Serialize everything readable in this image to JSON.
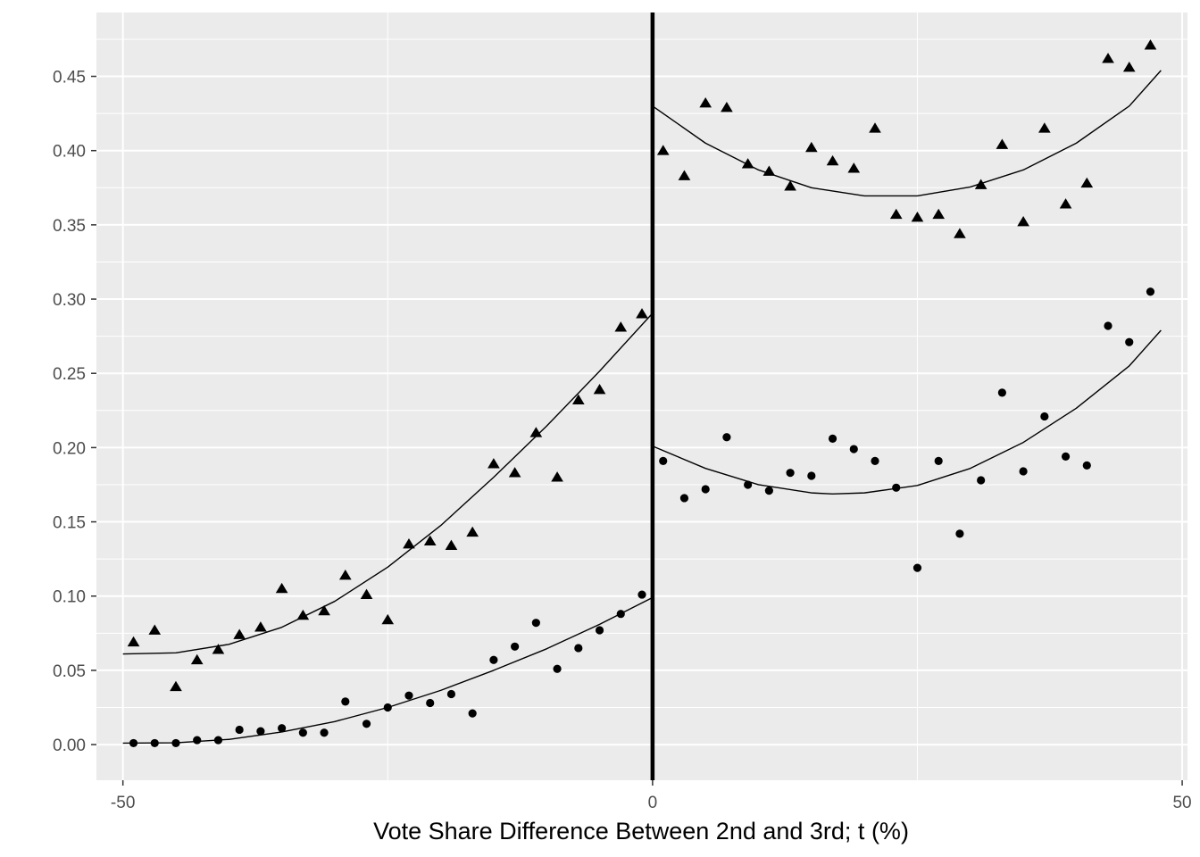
{
  "chart_data": {
    "type": "scatter",
    "title": "",
    "xlabel": "Vote Share Difference Between 2nd and 3rd; t (%)",
    "ylabel": "",
    "xlim": [
      -52.5,
      50.5
    ],
    "ylim": [
      -0.024,
      0.493
    ],
    "x_ticks": [
      -50,
      0,
      50
    ],
    "x_tick_labels": [
      "-50",
      "0",
      "50"
    ],
    "y_ticks": [
      0.0,
      0.05,
      0.1,
      0.15,
      0.2,
      0.25,
      0.3,
      0.35,
      0.4,
      0.45
    ],
    "y_tick_labels": [
      "0.00",
      "0.05",
      "0.10",
      "0.15",
      "0.20",
      "0.25",
      "0.30",
      "0.35",
      "0.40",
      "0.45"
    ],
    "grid": true,
    "panel_background": "#ebebeb",
    "grid_color": "#ffffff",
    "mark_color": "#000000",
    "cutoff_line": {
      "x": 0
    },
    "series": [
      {
        "marker": "triangle",
        "points": [
          [
            -49,
            0.069
          ],
          [
            -47,
            0.077
          ],
          [
            -45,
            0.039
          ],
          [
            -43,
            0.057
          ],
          [
            -41,
            0.064
          ],
          [
            -39,
            0.074
          ],
          [
            -37,
            0.079
          ],
          [
            -35,
            0.105
          ],
          [
            -33,
            0.087
          ],
          [
            -31,
            0.09
          ],
          [
            -29,
            0.114
          ],
          [
            -27,
            0.101
          ],
          [
            -25,
            0.084
          ],
          [
            -23,
            0.135
          ],
          [
            -21,
            0.137
          ],
          [
            -19,
            0.134
          ],
          [
            -17,
            0.143
          ],
          [
            -15,
            0.189
          ],
          [
            -13,
            0.183
          ],
          [
            -11,
            0.21
          ],
          [
            -9,
            0.18
          ],
          [
            -7,
            0.232
          ],
          [
            -5,
            0.239
          ],
          [
            -3,
            0.281
          ],
          [
            -1,
            0.29
          ],
          [
            1,
            0.4
          ],
          [
            3,
            0.383
          ],
          [
            5,
            0.432
          ],
          [
            7,
            0.429
          ],
          [
            9,
            0.391
          ],
          [
            11,
            0.386
          ],
          [
            13,
            0.376
          ],
          [
            15,
            0.402
          ],
          [
            17,
            0.393
          ],
          [
            19,
            0.388
          ],
          [
            21,
            0.415
          ],
          [
            23,
            0.357
          ],
          [
            25,
            0.355
          ],
          [
            27,
            0.357
          ],
          [
            29,
            0.344
          ],
          [
            31,
            0.377
          ],
          [
            33,
            0.404
          ],
          [
            35,
            0.352
          ],
          [
            37,
            0.415
          ],
          [
            39,
            0.364
          ],
          [
            41,
            0.378
          ],
          [
            43,
            0.462
          ],
          [
            45,
            0.456
          ],
          [
            47,
            0.471
          ]
        ],
        "fit_left": [
          [
            -50,
            0.061
          ],
          [
            -45,
            0.0618
          ],
          [
            -40,
            0.0675
          ],
          [
            -35,
            0.079
          ],
          [
            -30,
            0.0965
          ],
          [
            -25,
            0.1195
          ],
          [
            -20,
            0.1475
          ],
          [
            -15,
            0.18
          ],
          [
            -10,
            0.2145
          ],
          [
            -5,
            0.2515
          ],
          [
            0,
            0.2905
          ]
        ],
        "fit_right": [
          [
            0,
            0.43
          ],
          [
            5,
            0.405
          ],
          [
            10,
            0.387
          ],
          [
            15,
            0.375
          ],
          [
            20,
            0.3695
          ],
          [
            25,
            0.3695
          ],
          [
            30,
            0.3755
          ],
          [
            35,
            0.387
          ],
          [
            40,
            0.405
          ],
          [
            45,
            0.43
          ],
          [
            48,
            0.454
          ]
        ]
      },
      {
        "marker": "circle",
        "points": [
          [
            -49,
            0.001
          ],
          [
            -47,
            0.001
          ],
          [
            -45,
            0.001
          ],
          [
            -43,
            0.003
          ],
          [
            -41,
            0.003
          ],
          [
            -39,
            0.01
          ],
          [
            -37,
            0.009
          ],
          [
            -35,
            0.011
          ],
          [
            -33,
            0.008
          ],
          [
            -31,
            0.008
          ],
          [
            -29,
            0.029
          ],
          [
            -27,
            0.014
          ],
          [
            -25,
            0.025
          ],
          [
            -23,
            0.033
          ],
          [
            -21,
            0.028
          ],
          [
            -19,
            0.034
          ],
          [
            -17,
            0.021
          ],
          [
            -15,
            0.057
          ],
          [
            -13,
            0.066
          ],
          [
            -11,
            0.082
          ],
          [
            -9,
            0.051
          ],
          [
            -7,
            0.065
          ],
          [
            -5,
            0.077
          ],
          [
            -3,
            0.088
          ],
          [
            -1,
            0.101
          ],
          [
            1,
            0.191
          ],
          [
            3,
            0.166
          ],
          [
            5,
            0.172
          ],
          [
            7,
            0.207
          ],
          [
            9,
            0.175
          ],
          [
            11,
            0.171
          ],
          [
            13,
            0.183
          ],
          [
            15,
            0.181
          ],
          [
            17,
            0.206
          ],
          [
            19,
            0.199
          ],
          [
            21,
            0.191
          ],
          [
            23,
            0.173
          ],
          [
            25,
            0.119
          ],
          [
            27,
            0.191
          ],
          [
            29,
            0.142
          ],
          [
            31,
            0.178
          ],
          [
            33,
            0.237
          ],
          [
            35,
            0.184
          ],
          [
            37,
            0.221
          ],
          [
            39,
            0.194
          ],
          [
            41,
            0.188
          ],
          [
            43,
            0.282
          ],
          [
            45,
            0.271
          ],
          [
            47,
            0.305
          ]
        ],
        "fit_left": [
          [
            -50,
            0.001
          ],
          [
            -45,
            0.0012
          ],
          [
            -40,
            0.0035
          ],
          [
            -35,
            0.0085
          ],
          [
            -30,
            0.0155
          ],
          [
            -25,
            0.025
          ],
          [
            -20,
            0.0365
          ],
          [
            -15,
            0.05
          ],
          [
            -10,
            0.0645
          ],
          [
            -5,
            0.081
          ],
          [
            0,
            0.099
          ]
        ],
        "fit_right": [
          [
            0,
            0.201
          ],
          [
            5,
            0.186
          ],
          [
            10,
            0.175
          ],
          [
            15,
            0.1695
          ],
          [
            17,
            0.1688
          ],
          [
            20,
            0.1695
          ],
          [
            25,
            0.1745
          ],
          [
            30,
            0.186
          ],
          [
            35,
            0.2035
          ],
          [
            40,
            0.2265
          ],
          [
            45,
            0.255
          ],
          [
            48,
            0.279
          ]
        ]
      }
    ]
  }
}
